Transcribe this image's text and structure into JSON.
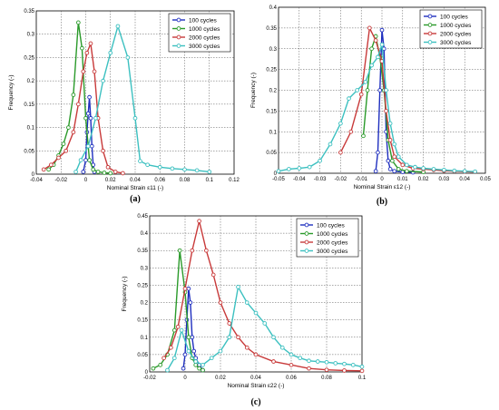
{
  "chart_data": [
    {
      "type": "line",
      "caption": "(a)",
      "xlabel": "Nominal Strain ε11 (-)",
      "ylabel": "Frequency (-)",
      "xlim": [
        -0.04,
        0.12
      ],
      "ylim": [
        0,
        0.35
      ],
      "xticks": [
        "-0.04",
        "-0.02",
        "0",
        "0.02",
        "0.04",
        "0.06",
        "0.08",
        "0.1",
        "0.12"
      ],
      "yticks": [
        "0",
        "0.05",
        "0.1",
        "0.15",
        "0.2",
        "0.25",
        "0.3",
        "0.35"
      ],
      "grid": true,
      "legend_position": "top-right",
      "series": [
        {
          "name": "100 cycles",
          "color": "#1f2fbf",
          "points": [
            [
              -0.002,
              0.005
            ],
            [
              0,
              0.03
            ],
            [
              0.001,
              0.09
            ],
            [
              0.002,
              0.13
            ],
            [
              0.003,
              0.165
            ],
            [
              0.004,
              0.12
            ],
            [
              0.005,
              0.06
            ],
            [
              0.006,
              0.02
            ],
            [
              0.007,
              0.005
            ]
          ]
        },
        {
          "name": "1000 cycles",
          "color": "#2a9a2a",
          "points": [
            [
              -0.03,
              0.01
            ],
            [
              -0.026,
              0.02
            ],
            [
              -0.022,
              0.04
            ],
            [
              -0.018,
              0.065
            ],
            [
              -0.014,
              0.1
            ],
            [
              -0.01,
              0.17
            ],
            [
              -0.006,
              0.325
            ],
            [
              -0.003,
              0.27
            ],
            [
              0,
              0.12
            ],
            [
              0.003,
              0.03
            ],
            [
              0.006,
              0.01
            ],
            [
              0.01,
              0.005
            ],
            [
              0.015,
              0.003
            ],
            [
              0.02,
              0.002
            ]
          ]
        },
        {
          "name": "2000 cycles",
          "color": "#c83a3a",
          "points": [
            [
              -0.034,
              0.01
            ],
            [
              -0.028,
              0.02
            ],
            [
              -0.022,
              0.035
            ],
            [
              -0.016,
              0.05
            ],
            [
              -0.01,
              0.09
            ],
            [
              -0.006,
              0.15
            ],
            [
              -0.002,
              0.22
            ],
            [
              0.001,
              0.26
            ],
            [
              0.004,
              0.28
            ],
            [
              0.007,
              0.22
            ],
            [
              0.01,
              0.12
            ],
            [
              0.014,
              0.05
            ],
            [
              0.018,
              0.015
            ],
            [
              0.024,
              0.005
            ],
            [
              0.03,
              0.002
            ]
          ]
        },
        {
          "name": "3000 cycles",
          "color": "#3cc0c0",
          "points": [
            [
              -0.008,
              0.005
            ],
            [
              -0.004,
              0.03
            ],
            [
              0.002,
              0.06
            ],
            [
              0.008,
              0.12
            ],
            [
              0.014,
              0.2
            ],
            [
              0.02,
              0.26
            ],
            [
              0.026,
              0.317
            ],
            [
              0.034,
              0.25
            ],
            [
              0.04,
              0.12
            ],
            [
              0.044,
              0.028
            ],
            [
              0.05,
              0.02
            ],
            [
              0.06,
              0.015
            ],
            [
              0.07,
              0.012
            ],
            [
              0.08,
              0.01
            ],
            [
              0.09,
              0.008
            ],
            [
              0.1,
              0.005
            ]
          ]
        }
      ]
    },
    {
      "type": "line",
      "caption": "(b)",
      "xlabel": "Nominal Strain ε12 (-)",
      "ylabel": "Frequency (-)",
      "xlim": [
        -0.05,
        0.05
      ],
      "ylim": [
        0,
        0.4
      ],
      "xticks": [
        "-0.05",
        "-0.04",
        "-0.03",
        "-0.02",
        "-0.01",
        "0",
        "0.01",
        "0.02",
        "0.03",
        "0.04",
        "0.05"
      ],
      "yticks": [
        "0",
        "0.05",
        "0.1",
        "0.15",
        "0.2",
        "0.25",
        "0.3",
        "0.35",
        "0.4"
      ],
      "grid": true,
      "legend_position": "top-right",
      "series": [
        {
          "name": "100 cycles",
          "color": "#1f2fbf",
          "points": [
            [
              -0.003,
              0.005
            ],
            [
              -0.002,
              0.05
            ],
            [
              -0.001,
              0.2
            ],
            [
              0,
              0.345
            ],
            [
              0.001,
              0.3
            ],
            [
              0.002,
              0.1
            ],
            [
              0.003,
              0.03
            ],
            [
              0.004,
              0.01
            ],
            [
              0.006,
              0.005
            ],
            [
              0.01,
              0.003
            ],
            [
              0.015,
              0.002
            ]
          ]
        },
        {
          "name": "1000 cycles",
          "color": "#2a9a2a",
          "points": [
            [
              -0.009,
              0.09
            ],
            [
              -0.007,
              0.2
            ],
            [
              -0.005,
              0.3
            ],
            [
              -0.003,
              0.33
            ],
            [
              -0.001,
              0.28
            ],
            [
              0.001,
              0.2
            ],
            [
              0.003,
              0.08
            ],
            [
              0.005,
              0.03
            ],
            [
              0.008,
              0.01
            ],
            [
              0.012,
              0.005
            ],
            [
              0.02,
              0.003
            ]
          ]
        },
        {
          "name": "2000 cycles",
          "color": "#c83a3a",
          "points": [
            [
              -0.02,
              0.05
            ],
            [
              -0.015,
              0.1
            ],
            [
              -0.01,
              0.19
            ],
            [
              -0.006,
              0.35
            ],
            [
              -0.003,
              0.32
            ],
            [
              0,
              0.27
            ],
            [
              0.002,
              0.15
            ],
            [
              0.004,
              0.08
            ],
            [
              0.006,
              0.04
            ],
            [
              0.01,
              0.02
            ],
            [
              0.015,
              0.012
            ],
            [
              0.02,
              0.01
            ],
            [
              0.025,
              0.008
            ],
            [
              0.03,
              0.006
            ],
            [
              0.035,
              0.005
            ],
            [
              0.04,
              0.004
            ],
            [
              0.045,
              0.003
            ]
          ]
        },
        {
          "name": "3000 cycles",
          "color": "#3cc0c0",
          "points": [
            [
              -0.05,
              0.005
            ],
            [
              -0.045,
              0.01
            ],
            [
              -0.04,
              0.012
            ],
            [
              -0.035,
              0.015
            ],
            [
              -0.03,
              0.03
            ],
            [
              -0.025,
              0.07
            ],
            [
              -0.02,
              0.12
            ],
            [
              -0.016,
              0.18
            ],
            [
              -0.012,
              0.2
            ],
            [
              -0.008,
              0.22
            ],
            [
              -0.005,
              0.26
            ],
            [
              -0.002,
              0.28
            ],
            [
              0,
              0.31
            ],
            [
              0.002,
              0.2
            ],
            [
              0.004,
              0.12
            ],
            [
              0.006,
              0.07
            ],
            [
              0.008,
              0.04
            ],
            [
              0.012,
              0.02
            ],
            [
              0.016,
              0.015
            ],
            [
              0.02,
              0.012
            ],
            [
              0.025,
              0.01
            ],
            [
              0.03,
              0.008
            ],
            [
              0.035,
              0.006
            ],
            [
              0.04,
              0.005
            ],
            [
              0.045,
              0.004
            ]
          ]
        }
      ]
    },
    {
      "type": "line",
      "caption": "(c)",
      "xlabel": "Nominal Strain ε22 (-)",
      "ylabel": "Frequency (-)",
      "xlim": [
        -0.02,
        0.1
      ],
      "ylim": [
        0,
        0.45
      ],
      "xticks": [
        "-0.02",
        "0",
        "0.02",
        "0.04",
        "0.06",
        "0.08",
        "0.1"
      ],
      "yticks": [
        "0",
        "0.05",
        "0.1",
        "0.15",
        "0.2",
        "0.25",
        "0.3",
        "0.35",
        "0.4",
        "0.45"
      ],
      "grid": true,
      "legend_position": "top-right",
      "series": [
        {
          "name": "100 cycles",
          "color": "#1f2fbf",
          "points": [
            [
              -0.001,
              0.01
            ],
            [
              0,
              0.05
            ],
            [
              0.001,
              0.15
            ],
            [
              0.002,
              0.24
            ],
            [
              0.003,
              0.2
            ],
            [
              0.004,
              0.1
            ],
            [
              0.005,
              0.06
            ],
            [
              0.006,
              0.04
            ],
            [
              0.008,
              0.02
            ],
            [
              0.01,
              0.005
            ]
          ]
        },
        {
          "name": "1000 cycles",
          "color": "#2a9a2a",
          "points": [
            [
              -0.018,
              0.01
            ],
            [
              -0.014,
              0.02
            ],
            [
              -0.01,
              0.05
            ],
            [
              -0.006,
              0.12
            ],
            [
              -0.003,
              0.35
            ],
            [
              0,
              0.23
            ],
            [
              0.002,
              0.1
            ],
            [
              0.004,
              0.04
            ],
            [
              0.006,
              0.02
            ],
            [
              0.008,
              0.01
            ],
            [
              0.01,
              0.005
            ]
          ]
        },
        {
          "name": "2000 cycles",
          "color": "#c83a3a",
          "points": [
            [
              -0.012,
              0.04
            ],
            [
              -0.008,
              0.07
            ],
            [
              -0.004,
              0.13
            ],
            [
              0,
              0.24
            ],
            [
              0.004,
              0.35
            ],
            [
              0.008,
              0.435
            ],
            [
              0.012,
              0.35
            ],
            [
              0.016,
              0.28
            ],
            [
              0.02,
              0.2
            ],
            [
              0.025,
              0.14
            ],
            [
              0.03,
              0.1
            ],
            [
              0.035,
              0.07
            ],
            [
              0.04,
              0.05
            ],
            [
              0.05,
              0.03
            ],
            [
              0.06,
              0.02
            ],
            [
              0.07,
              0.01
            ],
            [
              0.08,
              0.006
            ],
            [
              0.09,
              0.004
            ],
            [
              0.1,
              0.003
            ]
          ]
        },
        {
          "name": "3000 cycles",
          "color": "#3cc0c0",
          "points": [
            [
              -0.01,
              0.005
            ],
            [
              -0.006,
              0.04
            ],
            [
              -0.002,
              0.12
            ],
            [
              0.002,
              0.06
            ],
            [
              0.006,
              0.03
            ],
            [
              0.01,
              0.02
            ],
            [
              0.015,
              0.04
            ],
            [
              0.02,
              0.06
            ],
            [
              0.025,
              0.1
            ],
            [
              0.03,
              0.245
            ],
            [
              0.035,
              0.2
            ],
            [
              0.04,
              0.17
            ],
            [
              0.045,
              0.14
            ],
            [
              0.05,
              0.1
            ],
            [
              0.055,
              0.07
            ],
            [
              0.06,
              0.05
            ],
            [
              0.065,
              0.04
            ],
            [
              0.07,
              0.032
            ],
            [
              0.075,
              0.03
            ],
            [
              0.08,
              0.028
            ],
            [
              0.085,
              0.025
            ],
            [
              0.09,
              0.023
            ],
            [
              0.095,
              0.02
            ],
            [
              0.1,
              0.015
            ]
          ]
        }
      ]
    }
  ]
}
